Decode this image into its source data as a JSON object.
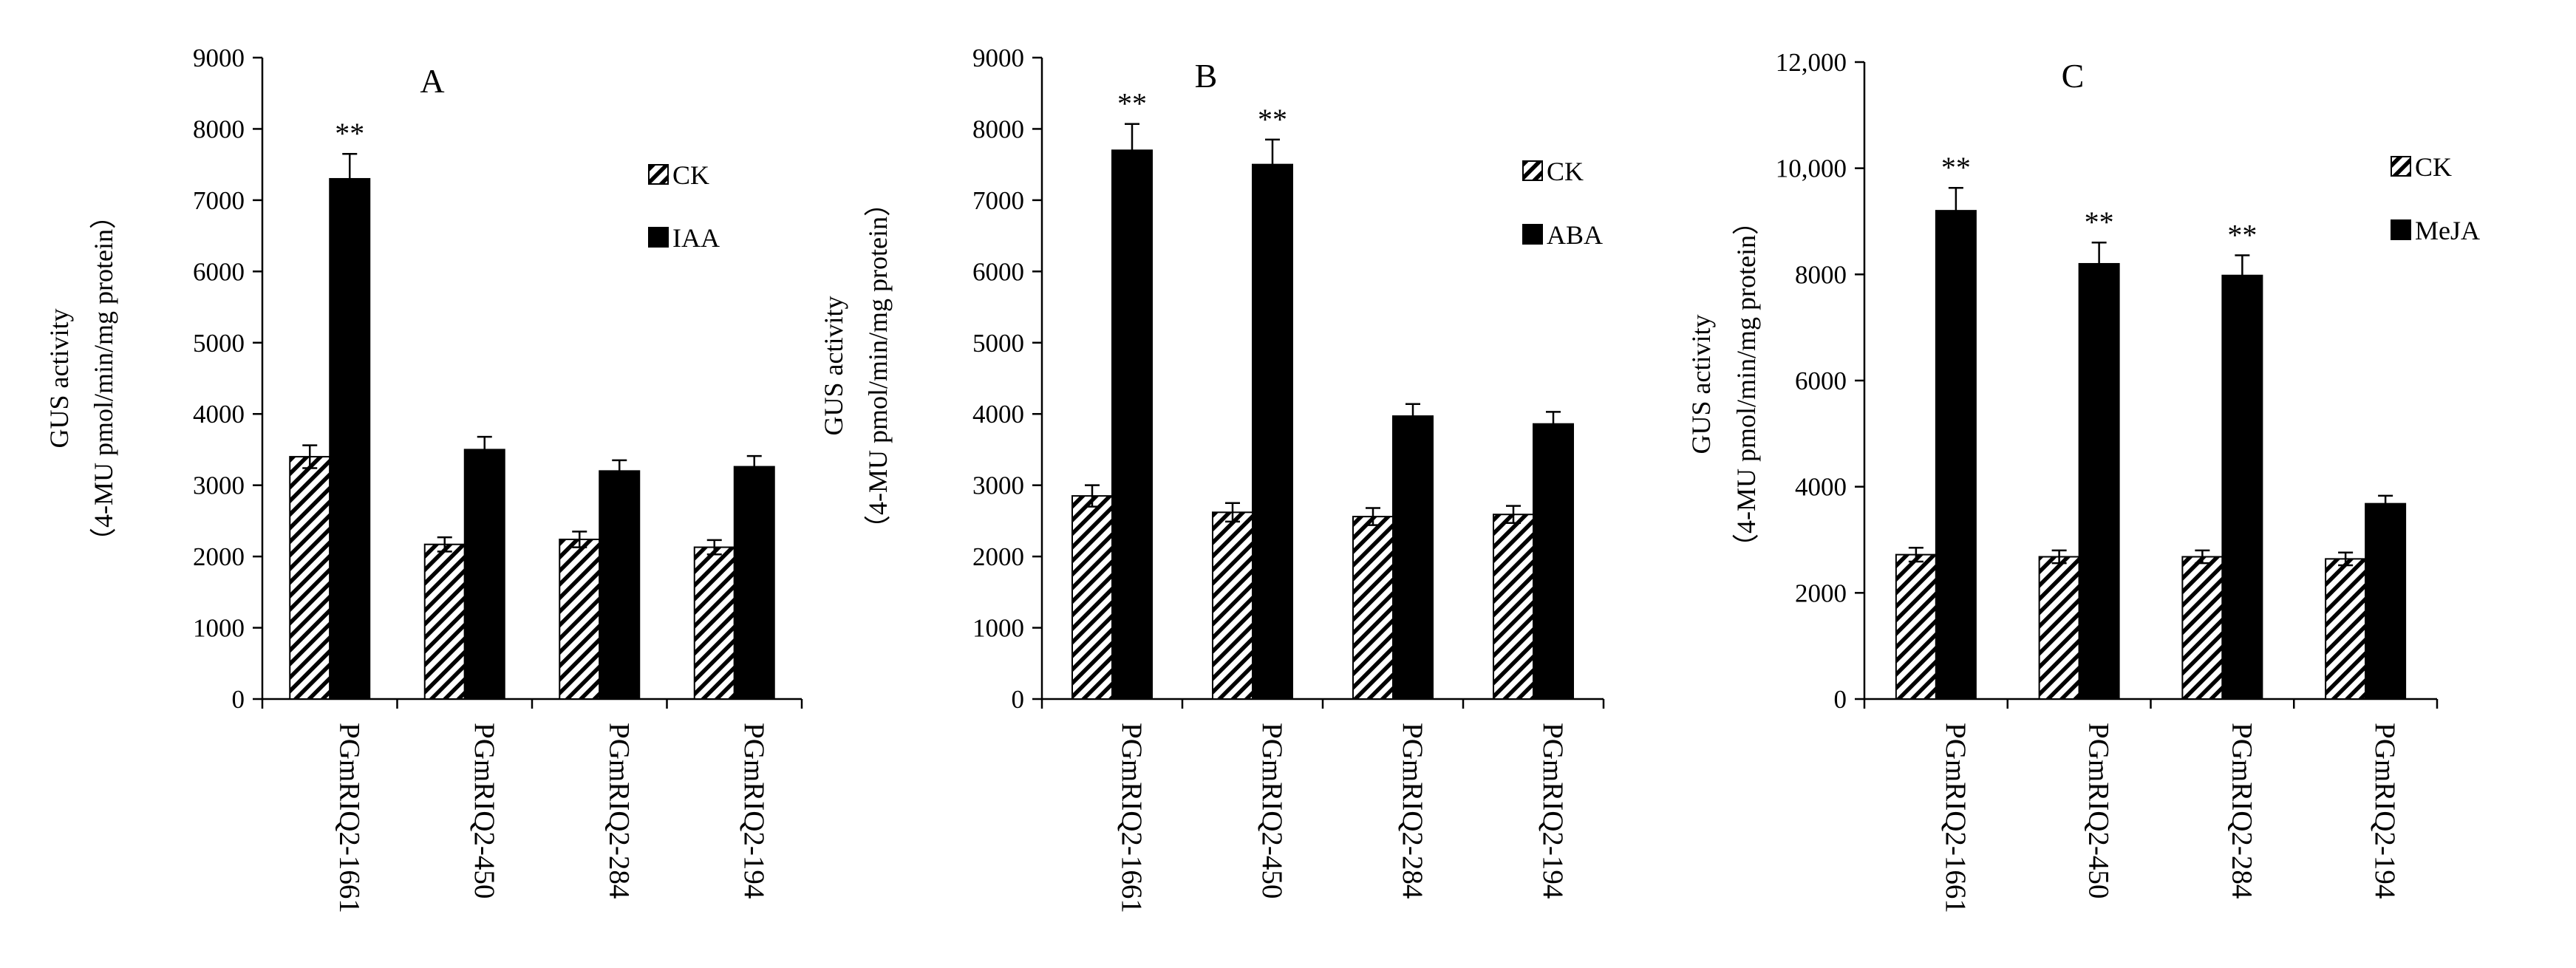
{
  "chart_data": [
    {
      "type": "bar",
      "title": "A",
      "categories": [
        "PGmRIQ2-1661",
        "PGmRIQ2-450",
        "PGmRIQ2-284",
        "PGmRIQ2-194"
      ],
      "series": [
        {
          "name": "CK",
          "pattern": "hatch",
          "values": [
            3400,
            2170,
            2240,
            2130
          ],
          "errors": [
            160,
            100,
            110,
            100
          ]
        },
        {
          "name": "IAA",
          "pattern": "solid",
          "values": [
            7300,
            3500,
            3200,
            3260
          ],
          "errors": [
            350,
            180,
            150,
            150
          ]
        }
      ],
      "significance": [
        "**",
        "",
        "",
        ""
      ],
      "ylabel_line1": "GUS activity",
      "ylabel_line2": "（4-MU pmol/min/mg protein）",
      "yticks": [
        "0",
        "1000",
        "2000",
        "3000",
        "4000",
        "5000",
        "6000",
        "7000",
        "8000",
        "9000"
      ],
      "ylim": [
        0,
        9000
      ]
    },
    {
      "type": "bar",
      "title": "B",
      "categories": [
        "PGmRIQ2-1661",
        "PGmRIQ2-450",
        "PGmRIQ2-284",
        "PGmRIQ2-194"
      ],
      "series": [
        {
          "name": "CK",
          "pattern": "hatch",
          "values": [
            2850,
            2620,
            2560,
            2590
          ],
          "errors": [
            150,
            130,
            120,
            120
          ]
        },
        {
          "name": "ABA",
          "pattern": "solid",
          "values": [
            7700,
            7500,
            3970,
            3860
          ],
          "errors": [
            370,
            350,
            170,
            170
          ]
        }
      ],
      "significance": [
        "**",
        "**",
        "",
        ""
      ],
      "ylabel_line1": "GUS activity",
      "ylabel_line2": "（4-MU pmol/min/mg protein）",
      "yticks": [
        "0",
        "1000",
        "2000",
        "3000",
        "4000",
        "5000",
        "6000",
        "7000",
        "8000",
        "9000"
      ],
      "ylim": [
        0,
        9000
      ]
    },
    {
      "type": "bar",
      "title": "C",
      "categories": [
        "PGmRIQ2-1661",
        "PGmRIQ2-450",
        "PGmRIQ2-284",
        "PGmRIQ2-194"
      ],
      "series": [
        {
          "name": "CK",
          "pattern": "hatch",
          "values": [
            2720,
            2680,
            2680,
            2640
          ],
          "errors": [
            130,
            120,
            120,
            120
          ]
        },
        {
          "name": "MeJA",
          "pattern": "solid",
          "values": [
            9200,
            8200,
            7980,
            3680
          ],
          "errors": [
            430,
            400,
            380,
            150
          ]
        }
      ],
      "significance": [
        "**",
        "**",
        "**",
        ""
      ],
      "ylabel_line1": "GUS activity",
      "ylabel_line2": "（4-MU pmol/min/mg protein）",
      "yticks": [
        "0",
        "2000",
        "4000",
        "6000",
        "8000",
        "10,000",
        "12,000"
      ],
      "ylim": [
        0,
        12000
      ]
    }
  ]
}
